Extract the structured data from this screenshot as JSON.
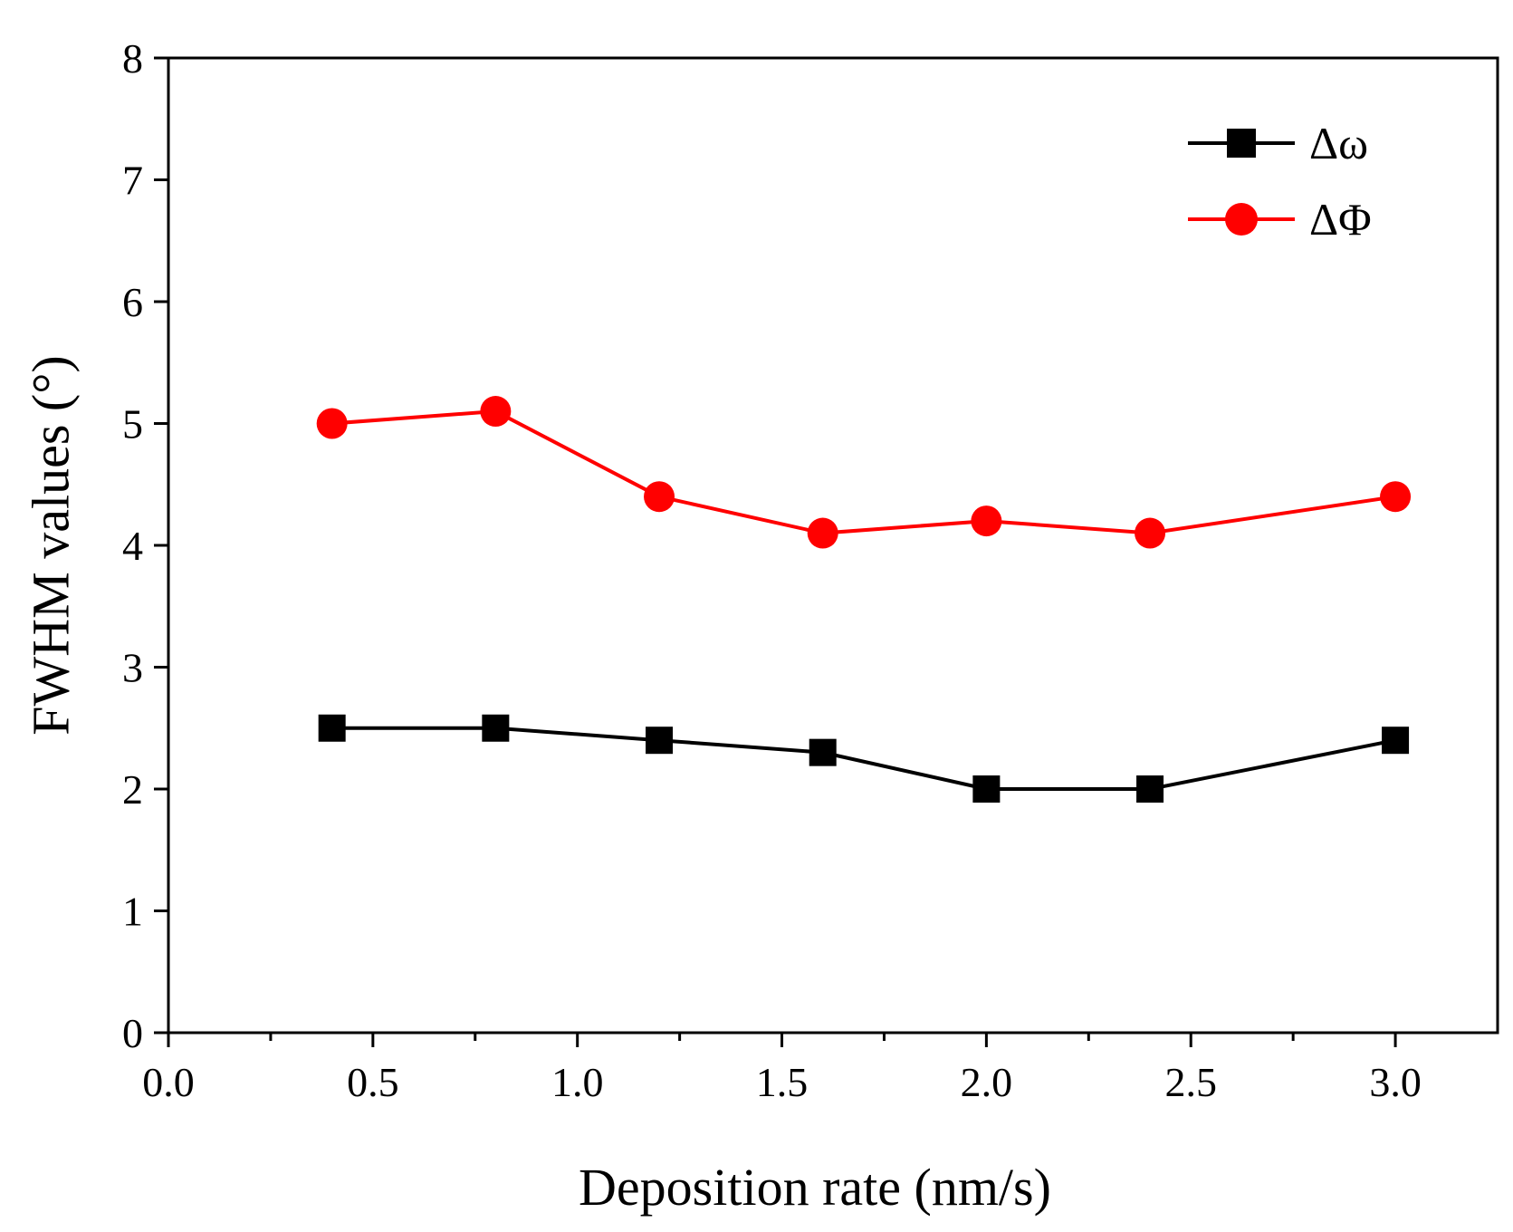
{
  "chart_data": {
    "type": "line",
    "xlabel": "Deposition rate (nm/s)",
    "ylabel": "FWHM values (°)",
    "xlim": [
      0.0,
      3.25
    ],
    "ylim": [
      0,
      8
    ],
    "x_ticks": [
      "0.0",
      "0.5",
      "1.0",
      "1.5",
      "2.0",
      "2.5",
      "3.0"
    ],
    "y_ticks": [
      "0",
      "1",
      "2",
      "3",
      "4",
      "5",
      "6",
      "7",
      "8"
    ],
    "x_tick_values": [
      0.0,
      0.5,
      1.0,
      1.5,
      2.0,
      2.5,
      3.0
    ],
    "y_tick_values": [
      0,
      1,
      2,
      3,
      4,
      5,
      6,
      7,
      8
    ],
    "grid": false,
    "legend_position": "top-right",
    "x": [
      0.4,
      0.8,
      1.2,
      1.6,
      2.0,
      2.4,
      3.0
    ],
    "series": [
      {
        "name": "Δω",
        "marker": "square",
        "color": "#000000",
        "values": [
          2.5,
          2.5,
          2.4,
          2.3,
          2.0,
          2.0,
          2.4
        ]
      },
      {
        "name": "ΔΦ",
        "marker": "circle",
        "color": "#ff0000",
        "values": [
          5.0,
          5.1,
          4.4,
          4.1,
          4.2,
          4.1,
          4.4
        ]
      }
    ]
  }
}
